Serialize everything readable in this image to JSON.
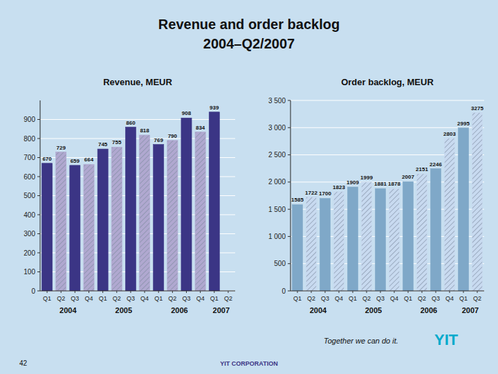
{
  "title": "Revenue and order backlog",
  "subtitle": "2004–Q2/2007",
  "annotations": [
    "Together we can do it.",
    "YIT",
    "42",
    "YIT CORPORATION"
  ],
  "chart_data": [
    {
      "type": "bar",
      "title": "Revenue, MEUR",
      "categories": [
        "Q1",
        "Q2",
        "Q3",
        "Q4",
        "Q1",
        "Q2",
        "Q3",
        "Q4",
        "Q1",
        "Q2",
        "Q3",
        "Q4",
        "Q1",
        "Q2"
      ],
      "values": [
        670,
        729,
        659,
        664,
        745,
        755,
        860,
        818,
        769,
        790,
        908,
        834,
        939,
        null
      ],
      "colors": [
        "#3b3585",
        "#b0a8d0",
        "#3b3585",
        "#b0a8d0",
        "#3b3585",
        "#b0a8d0",
        "#3b3585",
        "#b0a8d0",
        "#3b3585",
        "#b0a8d0",
        "#3b3585",
        "#b0a8d0",
        "#3b3585",
        "#b0a8d0"
      ],
      "ylim": [
        0,
        1000
      ],
      "yticks": [
        0,
        100,
        200,
        300,
        400,
        500,
        600,
        700,
        800,
        900
      ],
      "grid": true,
      "data_labels": true,
      "annotations": [
        "2004",
        "2005",
        "2006",
        "2007"
      ]
    },
    {
      "type": "bar",
      "title": "Order backlog, MEUR",
      "categories": [
        "Q1",
        "Q2",
        "Q3",
        "Q4",
        "Q1",
        "Q2",
        "Q3",
        "Q4",
        "Q1",
        "Q2",
        "Q3",
        "Q4",
        "Q1",
        "Q2"
      ],
      "values": [
        1585,
        1722,
        1700,
        1823,
        1909,
        1999,
        1881,
        1878,
        2007,
        2151,
        2246,
        2803,
        2995,
        3275
      ],
      "colors": [
        "#7fa8c8",
        "#c8daf0",
        "#7fa8c8",
        "#c8daf0",
        "#7fa8c8",
        "#c8daf0",
        "#7fa8c8",
        "#c8daf0",
        "#7fa8c8",
        "#c8daf0",
        "#7fa8c8",
        "#c8daf0",
        "#7fa8c8",
        "#c8daf0"
      ],
      "ylim": [
        0,
        3500
      ],
      "yticks": [
        0,
        500,
        {
          "value": 1000,
          "label": "1 000"
        },
        {
          "value": 1500,
          "label": "1 500"
        },
        {
          "value": 2000,
          "label": "2 000"
        },
        {
          "value": 2500,
          "label": "2 500"
        },
        {
          "value": 3000,
          "label": "3 000"
        },
        {
          "value": 3500,
          "label": "3 500"
        }
      ],
      "grid": true,
      "data_labels": true,
      "annotations": [
        "2004",
        "2005",
        "2006",
        "2007"
      ]
    }
  ]
}
